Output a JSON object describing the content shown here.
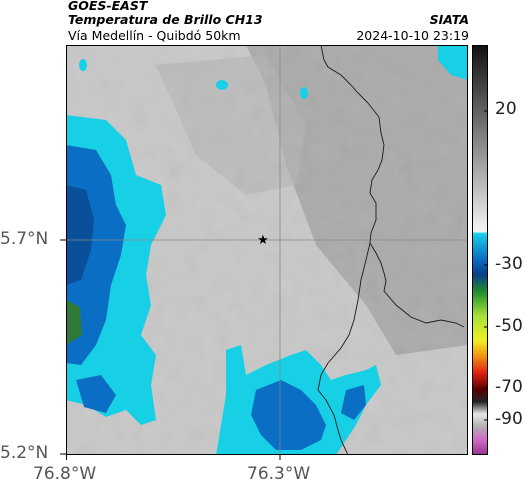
{
  "header": {
    "satellite": "GOES-EAST",
    "product": "Temperatura de Brillo CH13",
    "region": "Vía Medellín - Quibdó 50km",
    "organization": "SIATA",
    "datetime": "2024-10-10 23:19"
  },
  "map": {
    "x_ticks": [
      "76.8°W",
      "76.3°W"
    ],
    "y_ticks": [
      "5.7°N",
      "5.2°N"
    ],
    "marker_icon": "star-icon",
    "colors": {
      "background_gray": "#bcbcbc",
      "cyan": "#17d0e6",
      "blue": "#0a5fae",
      "boundary": "#222222"
    }
  },
  "colorbar": {
    "ticks": [
      "20",
      "-30",
      "-50",
      "-70",
      "-90"
    ]
  }
}
